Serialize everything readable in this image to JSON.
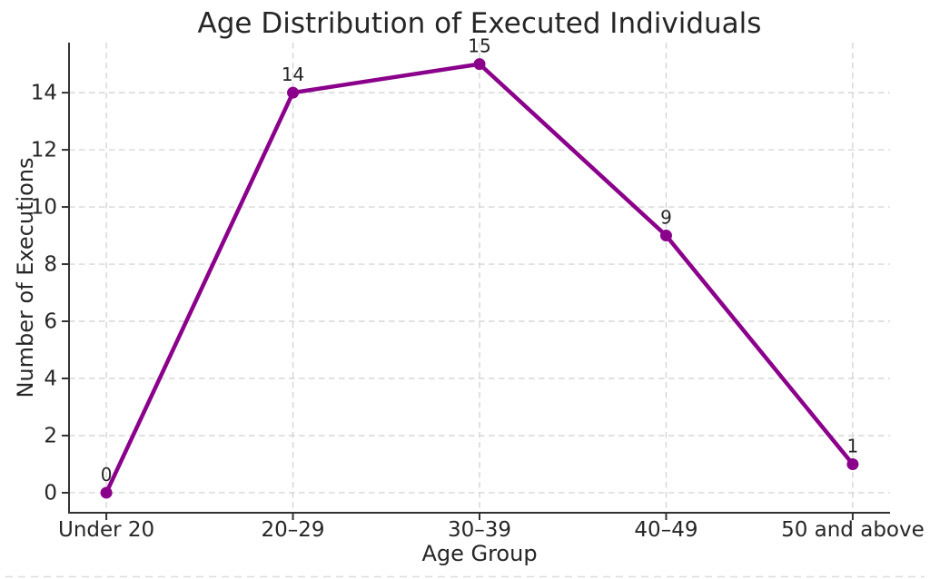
{
  "chart_data": {
    "type": "line",
    "title": "Age Distribution of Executed Individuals",
    "xlabel": "Age Group",
    "ylabel": "Number of Executions",
    "categories": [
      "Under 20",
      "20–29",
      "30–39",
      "40–49",
      "50 and above"
    ],
    "values": [
      0,
      14,
      15,
      9,
      1
    ],
    "point_labels": [
      "0",
      "14",
      "15",
      "9",
      "1"
    ],
    "yticks": [
      0,
      2,
      4,
      6,
      8,
      10,
      12,
      14
    ],
    "ylim": [
      -0.7,
      15.75
    ],
    "xlim": [
      -0.2,
      4.2
    ],
    "grid": true,
    "legend": false,
    "style": {
      "line_color": "#8B008B",
      "marker_color": "#8B008B",
      "grid_color": "#cfcfcf",
      "spine_color": "#333333",
      "tick_color": "#333333",
      "text_color": "#262626"
    }
  }
}
